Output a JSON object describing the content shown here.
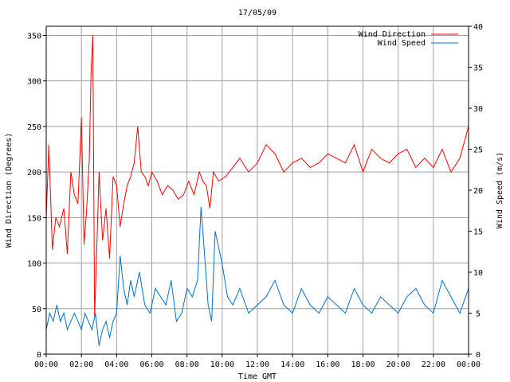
{
  "chart_data": {
    "type": "line",
    "title": "17/05/09",
    "xlabel": "Time GMT",
    "ylabel_left": "Wind Direction (Degrees)",
    "ylabel_right": "Wind Speed (m/s)",
    "grid": true,
    "legend_placement": "top-right",
    "x_ticks": [
      "00:00",
      "02:00",
      "04:00",
      "06:00",
      "08:00",
      "10:00",
      "12:00",
      "14:00",
      "16:00",
      "18:00",
      "20:00",
      "22:00",
      "00:00"
    ],
    "x_range_hours": [
      0,
      24
    ],
    "ylim_left": [
      0,
      360
    ],
    "y_ticks_left": [
      0,
      50,
      100,
      150,
      200,
      250,
      300,
      350
    ],
    "ylim_right": [
      0,
      40
    ],
    "y_ticks_right": [
      0,
      5,
      10,
      15,
      20,
      25,
      30,
      35,
      40
    ],
    "series": [
      {
        "name": "Wind Direction",
        "axis": "left",
        "color": "#ff0000",
        "x_hours": [
          0.0,
          0.15,
          0.35,
          0.55,
          0.75,
          1.0,
          1.2,
          1.4,
          1.6,
          1.8,
          2.0,
          2.15,
          2.3,
          2.45,
          2.55,
          2.65,
          2.75,
          2.85,
          3.0,
          3.2,
          3.4,
          3.6,
          3.8,
          4.0,
          4.2,
          4.4,
          4.6,
          4.8,
          5.0,
          5.2,
          5.4,
          5.6,
          5.8,
          6.0,
          6.3,
          6.6,
          6.9,
          7.2,
          7.5,
          7.8,
          8.1,
          8.4,
          8.7,
          8.9,
          9.1,
          9.3,
          9.5,
          9.8,
          10.2,
          10.6,
          11.0,
          11.5,
          12.0,
          12.5,
          13.0,
          13.5,
          14.0,
          14.5,
          15.0,
          15.5,
          16.0,
          16.5,
          17.0,
          17.5,
          18.0,
          18.5,
          19.0,
          19.5,
          20.0,
          20.5,
          21.0,
          21.5,
          22.0,
          22.5,
          23.0,
          23.5,
          24.0
        ],
        "values": [
          150,
          230,
          115,
          150,
          140,
          160,
          110,
          200,
          175,
          165,
          260,
          120,
          160,
          215,
          310,
          350,
          40,
          100,
          200,
          125,
          160,
          105,
          195,
          185,
          140,
          165,
          185,
          195,
          210,
          250,
          200,
          195,
          185,
          200,
          190,
          175,
          185,
          180,
          170,
          175,
          190,
          175,
          200,
          190,
          185,
          160,
          200,
          190,
          195,
          205,
          215,
          200,
          210,
          230,
          220,
          200,
          210,
          215,
          205,
          210,
          220,
          215,
          210,
          230,
          200,
          225,
          215,
          210,
          220,
          225,
          205,
          215,
          205,
          225,
          200,
          215,
          250
        ]
      },
      {
        "name": "Wind Speed",
        "axis": "right",
        "color": "#0070d0",
        "x_hours": [
          0.0,
          0.2,
          0.4,
          0.6,
          0.8,
          1.0,
          1.2,
          1.4,
          1.6,
          1.8,
          2.0,
          2.2,
          2.4,
          2.6,
          2.8,
          3.0,
          3.2,
          3.4,
          3.6,
          3.8,
          4.0,
          4.2,
          4.4,
          4.6,
          4.8,
          5.0,
          5.3,
          5.6,
          5.9,
          6.2,
          6.5,
          6.8,
          7.1,
          7.4,
          7.7,
          8.0,
          8.3,
          8.6,
          8.8,
          9.0,
          9.2,
          9.4,
          9.6,
          9.8,
          10.0,
          10.3,
          10.6,
          11.0,
          11.5,
          12.0,
          12.5,
          13.0,
          13.5,
          14.0,
          14.5,
          15.0,
          15.5,
          16.0,
          16.5,
          17.0,
          17.5,
          18.0,
          18.5,
          19.0,
          19.5,
          20.0,
          20.5,
          21.0,
          21.5,
          22.0,
          22.5,
          23.0,
          23.5,
          24.0
        ],
        "values": [
          3,
          5,
          4,
          6,
          4,
          5,
          3,
          4,
          5,
          4,
          3,
          5,
          4,
          3,
          5,
          1,
          3,
          4,
          2,
          4,
          5,
          12,
          8,
          6,
          9,
          7,
          10,
          6,
          5,
          8,
          7,
          6,
          9,
          4,
          5,
          8,
          7,
          9,
          18,
          12,
          6,
          4,
          15,
          13,
          11,
          7,
          6,
          8,
          5,
          6,
          7,
          9,
          6,
          5,
          8,
          6,
          5,
          7,
          6,
          5,
          8,
          6,
          5,
          7,
          6,
          5,
          7,
          8,
          6,
          5,
          9,
          7,
          5,
          8
        ]
      }
    ]
  }
}
